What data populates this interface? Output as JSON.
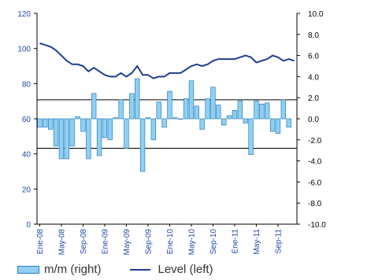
{
  "chart_data": {
    "type": "bar+line",
    "x_tick_labels": [
      "Ene-08",
      "May-08",
      "Sep-08",
      "Ene-09",
      "May-09",
      "Sep-09",
      "Ene-10",
      "May-10",
      "Sep-10",
      "Ene-11",
      "May-11",
      "Sep-11"
    ],
    "left_axis": {
      "min": 0,
      "max": 120,
      "ticks": [
        0,
        20,
        40,
        60,
        80,
        100,
        120
      ]
    },
    "right_axis": {
      "min": -10,
      "max": 10,
      "ticks": [
        "-10.0",
        "-8.0",
        "-6.0",
        "-4.0",
        "-2.0",
        "0.0",
        "2.0",
        "4.0",
        "6.0",
        "8.0",
        "10.0"
      ]
    },
    "reference_lines_right": [
      1.8,
      -2.8
    ],
    "series": [
      {
        "name": "m/m (right)",
        "type": "bar",
        "axis": "right",
        "values": [
          -0.8,
          -0.8,
          -1.0,
          -2.6,
          -3.8,
          -3.8,
          -2.6,
          0.2,
          -1.2,
          -3.8,
          2.4,
          -3.5,
          -1.8,
          -2.0,
          0.1,
          1.8,
          -2.8,
          2.4,
          3.8,
          -5.0,
          0.1,
          -2.0,
          1.6,
          -0.8,
          2.6,
          0.1,
          0,
          1.9,
          3.6,
          1.2,
          -1.0,
          1.9,
          3.0,
          1.3,
          -0.6,
          0.3,
          0.8,
          1.7,
          -0.4,
          -3.4,
          1.7,
          1.4,
          1.5,
          -1.2,
          -1.4,
          1.8,
          -0.8
        ]
      },
      {
        "name": "Level (left)",
        "type": "line",
        "axis": "left",
        "values": [
          103,
          102,
          101,
          99,
          96,
          93,
          91,
          91,
          90,
          87,
          89,
          87,
          85,
          84,
          84,
          86,
          84,
          86,
          90,
          85,
          85,
          83,
          84,
          84,
          86,
          86,
          86,
          88,
          90,
          91,
          90,
          91,
          93,
          94,
          94,
          94,
          94,
          95,
          96,
          95,
          92,
          93,
          94,
          96,
          95,
          93,
          94,
          93
        ]
      }
    ],
    "legend": {
      "position": "bottom-left"
    },
    "grid": false
  },
  "legend_labels": {
    "bars": "m/m (right)",
    "line": "Level (left)"
  },
  "colors": {
    "bar_fill": "#8fd0f3",
    "bar_stroke": "#2a7fc0",
    "line": "#1f3f8f",
    "left_axis_text": "#1f4aa8",
    "right_axis_text": "#000000",
    "x_tick_text": "#1f4aa8"
  }
}
